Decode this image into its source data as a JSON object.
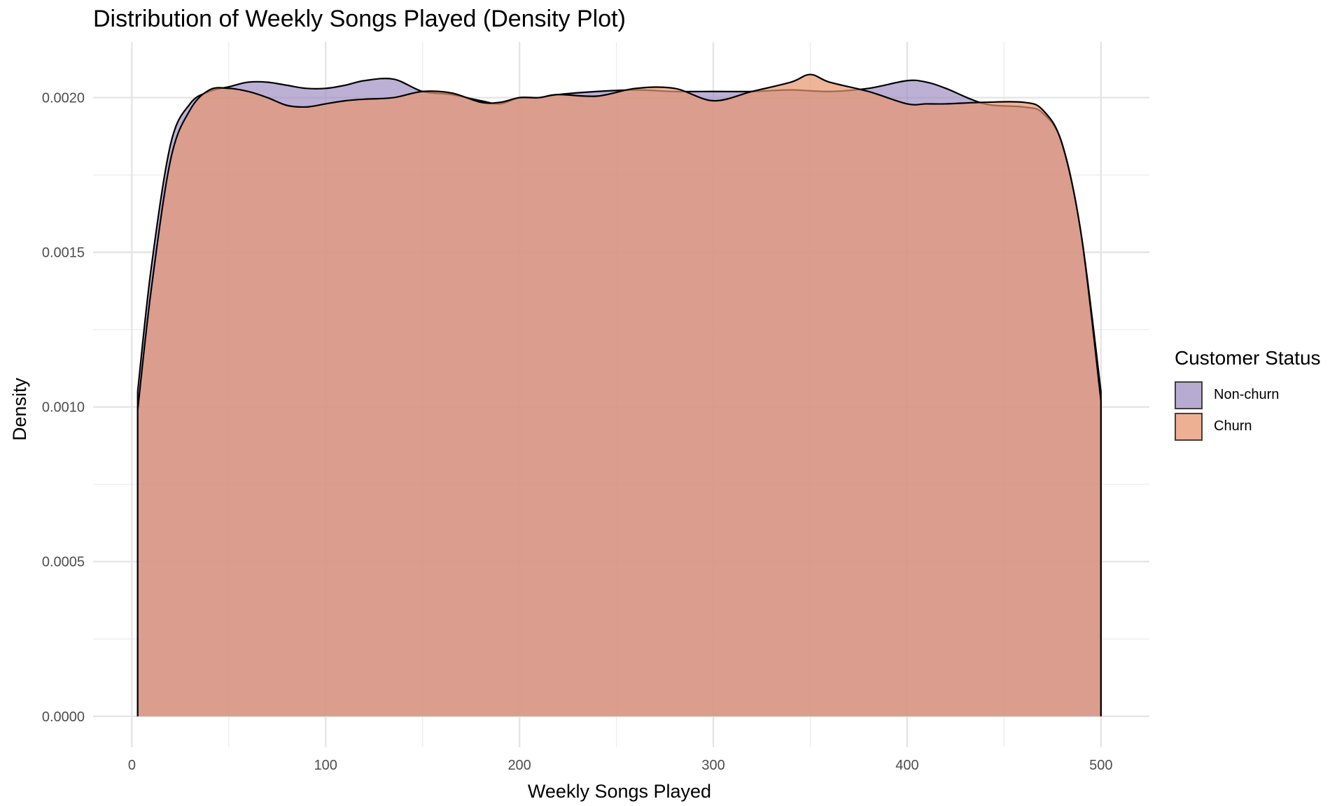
{
  "chart_data": {
    "type": "area",
    "title": "Distribution of Weekly Songs Played (Density Plot)",
    "xlabel": "Weekly Songs Played",
    "ylabel": "Density",
    "xlim": [
      -20,
      525
    ],
    "ylim": [
      -0.0001,
      0.00218
    ],
    "x_ticks": [
      "0",
      "100",
      "200",
      "300",
      "400",
      "500"
    ],
    "y_ticks": [
      "0.0000",
      "0.0005",
      "0.0010",
      "0.0015",
      "0.0020"
    ],
    "grid": true,
    "legend_title": "Customer Status",
    "legend_position": "right",
    "series": [
      {
        "name": "Non-churn",
        "color": "#9F8FC3",
        "x": [
          3,
          10,
          20,
          30,
          40,
          50,
          60,
          70,
          80,
          90,
          100,
          110,
          120,
          135,
          150,
          165,
          180,
          190,
          200,
          210,
          220,
          240,
          260,
          280,
          300,
          320,
          340,
          360,
          380,
          400,
          410,
          420,
          440,
          460,
          470,
          480,
          490,
          500
        ],
        "y": [
          0.00105,
          0.00145,
          0.00185,
          0.00198,
          0.00202,
          0.002035,
          0.00205,
          0.00205,
          0.00204,
          0.00203,
          0.00203,
          0.00204,
          0.002055,
          0.00206,
          0.00202,
          0.00201,
          0.00199,
          0.00198,
          0.002,
          0.002,
          0.00201,
          0.00202,
          0.002025,
          0.00202,
          0.00202,
          0.00202,
          0.002025,
          0.00202,
          0.00203,
          0.002055,
          0.00205,
          0.00203,
          0.00198,
          0.00197,
          0.00195,
          0.00185,
          0.00155,
          0.00105
        ]
      },
      {
        "name": "Churn",
        "color": "#E8966E",
        "x": [
          3,
          10,
          20,
          30,
          40,
          50,
          60,
          70,
          80,
          90,
          100,
          110,
          120,
          135,
          150,
          165,
          180,
          190,
          200,
          210,
          220,
          240,
          260,
          280,
          300,
          320,
          340,
          350,
          360,
          380,
          400,
          410,
          420,
          440,
          460,
          470,
          480,
          490,
          500
        ],
        "y": [
          0.00099,
          0.00138,
          0.0018,
          0.00196,
          0.002025,
          0.00203,
          0.00202,
          0.002,
          0.001975,
          0.00197,
          0.00198,
          0.00199,
          0.001995,
          0.002,
          0.00202,
          0.002015,
          0.001985,
          0.001985,
          0.002,
          0.002,
          0.00201,
          0.002005,
          0.00203,
          0.00203,
          0.00199,
          0.00202,
          0.00205,
          0.002075,
          0.00205,
          0.00202,
          0.00198,
          0.00198,
          0.00198,
          0.001985,
          0.001985,
          0.00196,
          0.00185,
          0.00155,
          0.00102
        ]
      }
    ]
  }
}
